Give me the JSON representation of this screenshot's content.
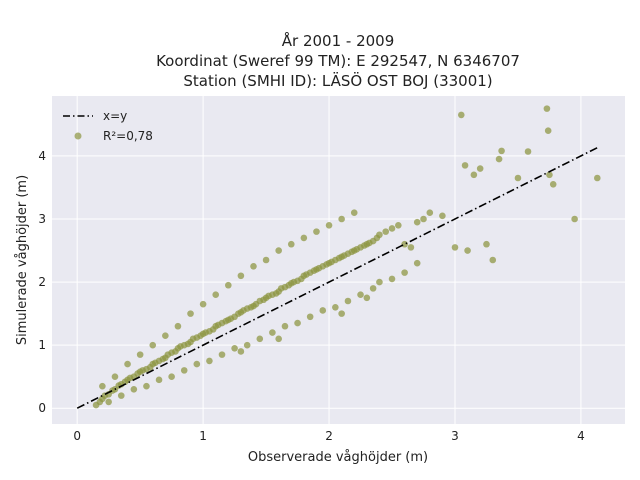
{
  "chart_data": {
    "type": "scatter",
    "title": [
      "År 2001 - 2009",
      "Koordinat (Sweref 99 TM): E 292547, N 6346707",
      "Station (SMHI ID): LÄSÖ OST BOJ (33001)"
    ],
    "xlabel": "Observerade våghöjder (m)",
    "ylabel": "Simulerade våghöjder (m)",
    "xlim": [
      -0.2,
      4.35
    ],
    "ylim": [
      -0.25,
      4.95
    ],
    "xticks": [
      0,
      1,
      2,
      3,
      4
    ],
    "yticks": [
      0,
      1,
      2,
      3,
      4
    ],
    "grid": true,
    "background": "#e9e9f1",
    "legend": {
      "placement": "top-left",
      "entries": [
        {
          "label": "x=y",
          "kind": "line",
          "color": "#000000"
        },
        {
          "label": "R²=0,78",
          "kind": "marker",
          "color": "#8c9440"
        }
      ]
    },
    "series": [
      {
        "kind": "line",
        "style": "dashdot",
        "color": "#000000",
        "x": [
          0,
          4.13
        ],
        "y": [
          0,
          4.13
        ]
      },
      {
        "kind": "scatter",
        "color": "#8c9440",
        "x": [
          0.15,
          0.18,
          0.2,
          0.22,
          0.25,
          0.28,
          0.3,
          0.33,
          0.35,
          0.38,
          0.4,
          0.42,
          0.45,
          0.48,
          0.5,
          0.52,
          0.55,
          0.58,
          0.6,
          0.62,
          0.65,
          0.68,
          0.7,
          0.72,
          0.75,
          0.78,
          0.8,
          0.82,
          0.85,
          0.88,
          0.9,
          0.92,
          0.95,
          0.98,
          1.0,
          1.02,
          1.05,
          1.08,
          1.1,
          1.12,
          1.15,
          1.18,
          1.2,
          1.22,
          1.25,
          1.28,
          1.3,
          1.32,
          1.35,
          1.38,
          1.4,
          1.42,
          1.45,
          1.48,
          1.5,
          1.52,
          1.55,
          1.58,
          1.6,
          1.62,
          1.65,
          1.68,
          1.7,
          1.72,
          1.75,
          1.78,
          1.8,
          1.82,
          1.85,
          1.88,
          1.9,
          1.92,
          1.95,
          1.98,
          2.0,
          2.02,
          2.05,
          2.08,
          2.1,
          2.12,
          2.15,
          2.18,
          2.2,
          2.22,
          2.25,
          2.28,
          2.3,
          2.32,
          2.35,
          2.38,
          2.4,
          2.45,
          2.5,
          2.55,
          2.6,
          2.65,
          2.7,
          2.75,
          2.8,
          2.9,
          3.0,
          3.05,
          3.08,
          3.1,
          3.15,
          3.2,
          3.25,
          3.3,
          3.35,
          3.37,
          3.5,
          3.58,
          3.73,
          3.74,
          3.75,
          3.78,
          3.95,
          4.13,
          0.2,
          0.3,
          0.4,
          0.5,
          0.6,
          0.7,
          0.8,
          0.9,
          1.0,
          1.1,
          1.2,
          1.3,
          1.4,
          1.5,
          1.6,
          1.7,
          1.8,
          1.9,
          2.0,
          2.1,
          2.2,
          0.25,
          0.35,
          0.45,
          0.55,
          0.65,
          0.75,
          0.85,
          0.95,
          1.05,
          1.15,
          1.25,
          1.35,
          1.45,
          1.55,
          1.65,
          1.75,
          1.85,
          1.95,
          2.05,
          2.15,
          2.25,
          2.35,
          2.5,
          2.6,
          2.4,
          2.7,
          1.3,
          1.6,
          2.1,
          2.3
        ],
        "y": [
          0.05,
          0.1,
          0.15,
          0.2,
          0.22,
          0.28,
          0.3,
          0.36,
          0.38,
          0.42,
          0.45,
          0.48,
          0.5,
          0.55,
          0.58,
          0.6,
          0.62,
          0.65,
          0.7,
          0.72,
          0.75,
          0.78,
          0.8,
          0.85,
          0.88,
          0.9,
          0.95,
          0.98,
          1.0,
          1.02,
          1.05,
          1.1,
          1.12,
          1.15,
          1.18,
          1.2,
          1.22,
          1.25,
          1.3,
          1.32,
          1.35,
          1.38,
          1.4,
          1.42,
          1.45,
          1.5,
          1.52,
          1.55,
          1.58,
          1.6,
          1.62,
          1.65,
          1.7,
          1.72,
          1.75,
          1.78,
          1.8,
          1.82,
          1.85,
          1.9,
          1.92,
          1.95,
          1.98,
          2.0,
          2.02,
          2.05,
          2.1,
          2.12,
          2.15,
          2.18,
          2.2,
          2.22,
          2.25,
          2.28,
          2.3,
          2.32,
          2.35,
          2.38,
          2.4,
          2.42,
          2.45,
          2.48,
          2.5,
          2.52,
          2.55,
          2.58,
          2.6,
          2.62,
          2.65,
          2.7,
          2.75,
          2.8,
          2.85,
          2.9,
          2.6,
          2.55,
          2.95,
          3.0,
          3.1,
          3.05,
          2.55,
          4.65,
          3.85,
          2.5,
          3.7,
          3.8,
          2.6,
          2.35,
          3.95,
          4.08,
          3.65,
          4.07,
          4.75,
          4.4,
          3.7,
          3.55,
          3.0,
          3.65,
          0.35,
          0.5,
          0.7,
          0.85,
          1.0,
          1.15,
          1.3,
          1.5,
          1.65,
          1.8,
          1.95,
          2.1,
          2.25,
          2.35,
          2.5,
          2.6,
          2.7,
          2.8,
          2.9,
          3.0,
          3.1,
          0.1,
          0.2,
          0.3,
          0.35,
          0.45,
          0.5,
          0.6,
          0.7,
          0.75,
          0.85,
          0.95,
          1.0,
          1.1,
          1.2,
          1.3,
          1.35,
          1.45,
          1.55,
          1.6,
          1.7,
          1.8,
          1.9,
          2.05,
          2.15,
          2.0,
          2.3,
          0.9,
          1.1,
          1.5,
          1.75
        ]
      }
    ]
  }
}
